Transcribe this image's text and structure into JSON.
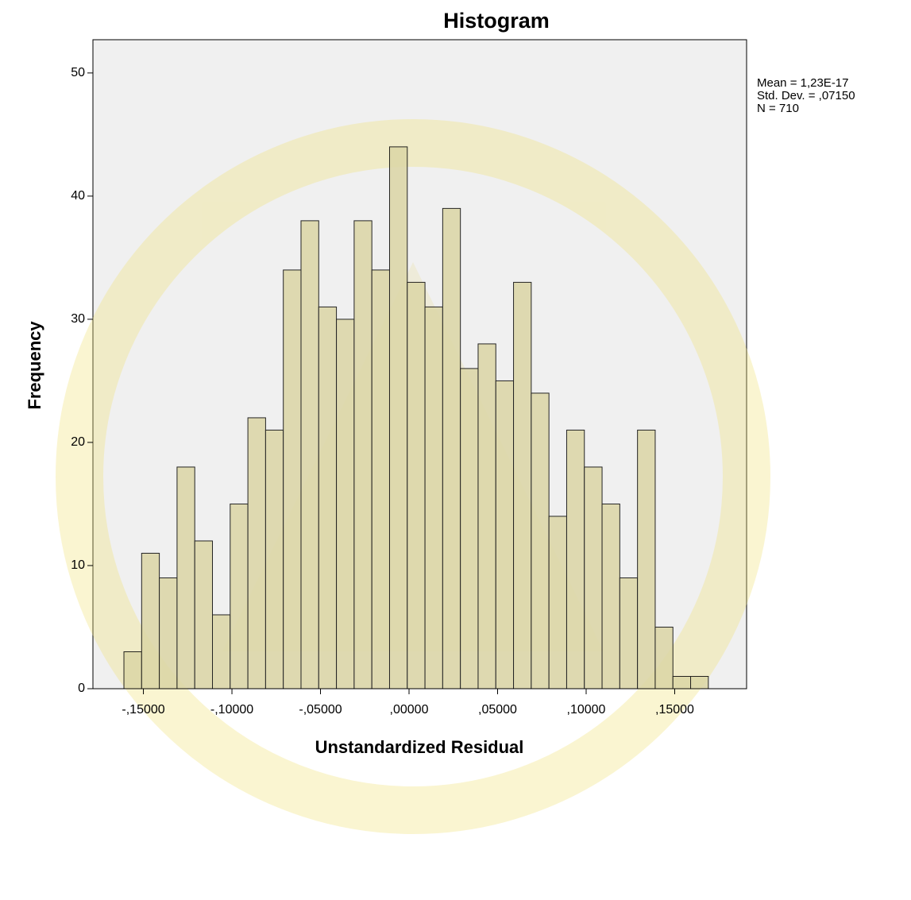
{
  "chart_data": {
    "type": "histogram",
    "title": "Histogram",
    "x_label": "Unstandardized Residual",
    "y_label": "Frequency",
    "annotations": [
      "Mean = 1,23E-17",
      "Std. Dev. = ,07150",
      "N = 710"
    ],
    "bins": [
      -0.161,
      -0.151,
      -0.141,
      -0.131,
      -0.121,
      -0.111,
      -0.101,
      -0.091,
      -0.081,
      -0.071,
      -0.061,
      -0.051,
      -0.041,
      -0.031,
      -0.021,
      -0.011,
      -0.001,
      0.009,
      0.019,
      0.029,
      0.039,
      0.049,
      0.059,
      0.069,
      0.079,
      0.089,
      0.099,
      0.109,
      0.119,
      0.129,
      0.139,
      0.149,
      0.159,
      0.169
    ],
    "counts": [
      3,
      11,
      9,
      18,
      12,
      6,
      15,
      22,
      21,
      34,
      38,
      31,
      30,
      38,
      34,
      44,
      33,
      31,
      39,
      26,
      28,
      25,
      33,
      24,
      14,
      21,
      18,
      15,
      9,
      21,
      5,
      1,
      1
    ],
    "color": "#dcd6a6",
    "edge_color": "#000000",
    "background": "#f0f0f0",
    "xlim": [
      -0.1785,
      0.1906
    ],
    "ylim": [
      0,
      52.7
    ],
    "xticks": [
      {
        "value": -0.15,
        "label": "-,15000"
      },
      {
        "value": -0.1,
        "label": "-,10000"
      },
      {
        "value": -0.05,
        "label": "-,05000"
      },
      {
        "value": 0,
        "label": ",00000"
      },
      {
        "value": 0.05,
        "label": ",05000"
      },
      {
        "value": 0.1,
        "label": ",10000"
      },
      {
        "value": 0.15,
        "label": ",15000"
      }
    ],
    "yticks": [
      0,
      10,
      20,
      30,
      40,
      50
    ]
  }
}
